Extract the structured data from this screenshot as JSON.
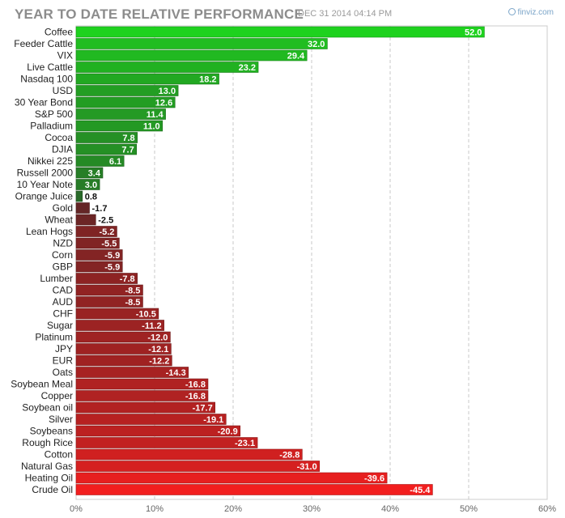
{
  "header": {
    "title": "YEAR TO DATE RELATIVE PERFORMANCE",
    "timestamp": "DEC 31 2014 04:14 PM",
    "brand": "finviz.com"
  },
  "chart_data": {
    "type": "bar",
    "orientation": "horizontal",
    "title": "YEAR TO DATE RELATIVE PERFORMANCE",
    "xlim": [
      0,
      60
    ],
    "x_ticks": [
      "0%",
      "10%",
      "20%",
      "30%",
      "40%",
      "50%",
      "60%"
    ],
    "grid": true,
    "categories": [
      "Coffee",
      "Feeder Cattle",
      "VIX",
      "Live Cattle",
      "Nasdaq 100",
      "USD",
      "30 Year Bond",
      "S&P 500",
      "Palladium",
      "Cocoa",
      "DJIA",
      "Nikkei 225",
      "Russell 2000",
      "10 Year Note",
      "Orange Juice",
      "Gold",
      "Wheat",
      "Lean Hogs",
      "NZD",
      "Corn",
      "GBP",
      "Lumber",
      "CAD",
      "AUD",
      "CHF",
      "Sugar",
      "Platinum",
      "JPY",
      "EUR",
      "Oats",
      "Soybean Meal",
      "Copper",
      "Soybean oil",
      "Silver",
      "Soybeans",
      "Rough Rice",
      "Cotton",
      "Natural Gas",
      "Heating Oil",
      "Crude Oil"
    ],
    "values": [
      52.0,
      32.0,
      29.4,
      23.2,
      18.2,
      13.0,
      12.6,
      11.4,
      11.0,
      7.8,
      7.7,
      6.1,
      3.4,
      3.0,
      0.8,
      -1.7,
      -2.5,
      -5.2,
      -5.5,
      -5.9,
      -5.9,
      -7.8,
      -8.5,
      -8.5,
      -10.5,
      -11.2,
      -12.0,
      -12.1,
      -12.2,
      -14.3,
      -16.8,
      -16.8,
      -17.7,
      -19.1,
      -20.9,
      -23.1,
      -28.8,
      -31.0,
      -39.6,
      -45.4
    ],
    "value_labels": [
      "52.0",
      "32.0",
      "29.4",
      "23.2",
      "18.2",
      "13.0",
      "12.6",
      "11.4",
      "11.0",
      "7.8",
      "7.7",
      "6.1",
      "3.4",
      "3.0",
      "0.8",
      "-1.7",
      "-2.5",
      "-5.2",
      "-5.5",
      "-5.9",
      "-5.9",
      "-7.8",
      "-8.5",
      "-8.5",
      "-10.5",
      "-11.2",
      "-12.0",
      "-12.1",
      "-12.2",
      "-14.3",
      "-16.8",
      "-16.8",
      "-17.7",
      "-19.1",
      "-20.9",
      "-23.1",
      "-28.8",
      "-31.0",
      "-39.6",
      "-45.4"
    ],
    "colors": {
      "positive_max": "#1ed21e",
      "positive_min": "#2c4a2c",
      "negative_min": "#3a2828",
      "negative_max": "#f21e1e"
    }
  }
}
